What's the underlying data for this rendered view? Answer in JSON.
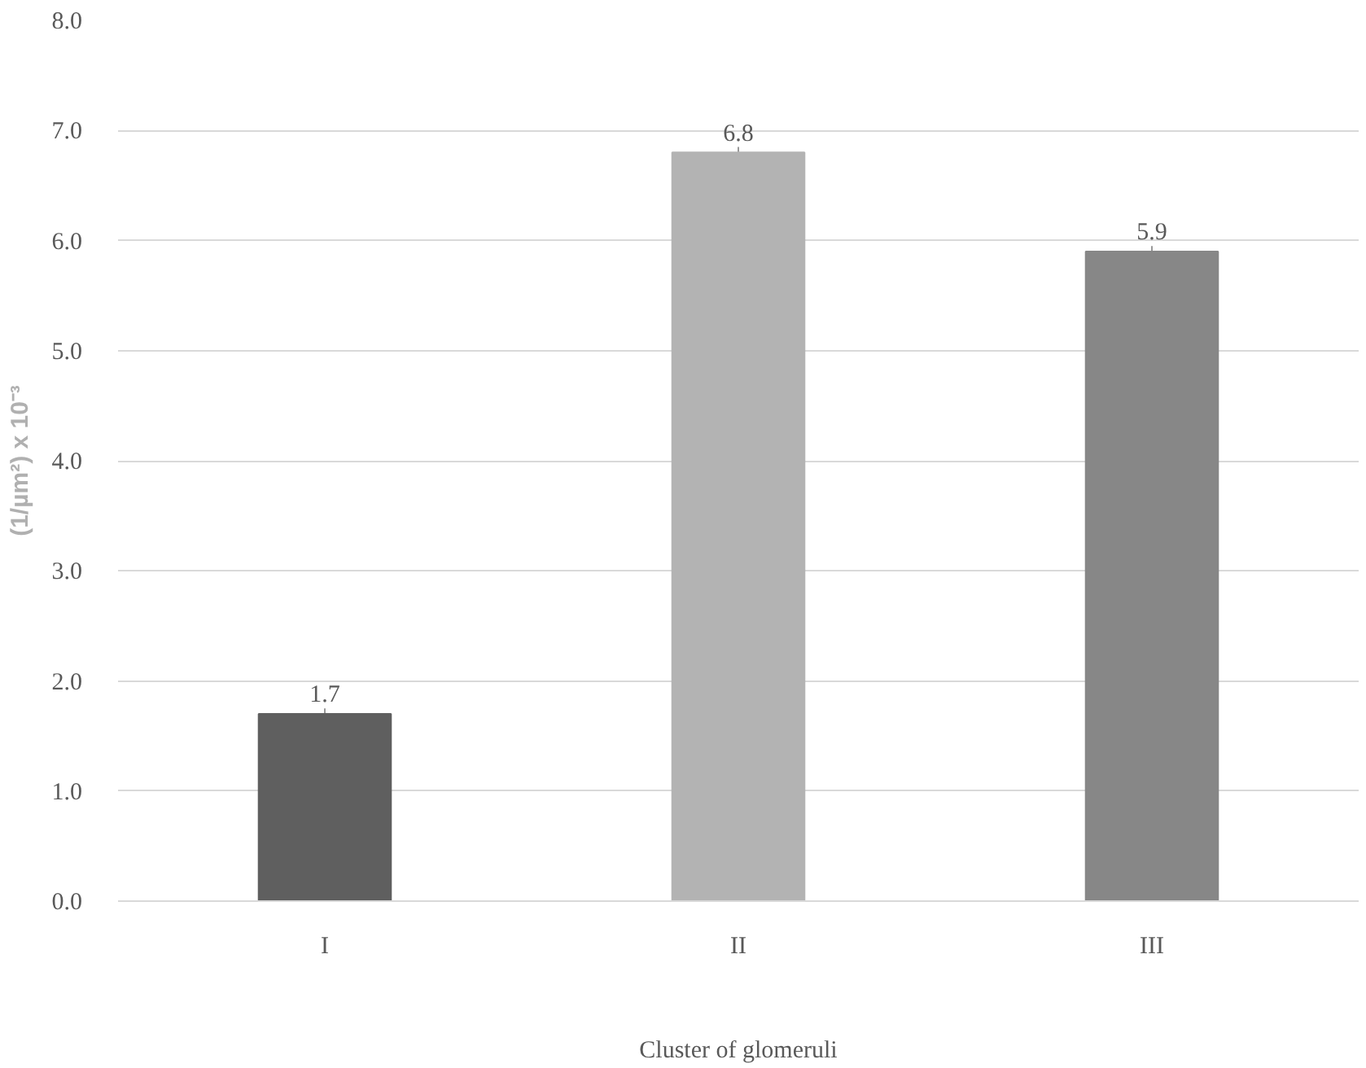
{
  "chart_data": {
    "type": "bar",
    "xlabel": "Cluster of glomeruli",
    "ylabel": "(1/µm²) x 10⁻³",
    "categories": [
      "I",
      "II",
      "III"
    ],
    "values": [
      1.7,
      6.8,
      5.9
    ],
    "colors": [
      "#5f5f5f",
      "#b3b3b3",
      "#878787"
    ],
    "errors": [
      0.05,
      0.05,
      0.05
    ],
    "ylim": [
      0,
      8
    ],
    "yticks": [
      {
        "value": 0,
        "label": "0.0"
      },
      {
        "value": 1,
        "label": "1.0"
      },
      {
        "value": 2,
        "label": "2.0"
      },
      {
        "value": 3,
        "label": "3.0"
      },
      {
        "value": 4,
        "label": "4.0"
      },
      {
        "value": 5,
        "label": "5.0"
      },
      {
        "value": 6,
        "label": "6.0"
      },
      {
        "value": 7,
        "label": "7.0"
      },
      {
        "value": 8,
        "label": "8.0"
      }
    ],
    "grid": "y",
    "data_labels": true
  }
}
